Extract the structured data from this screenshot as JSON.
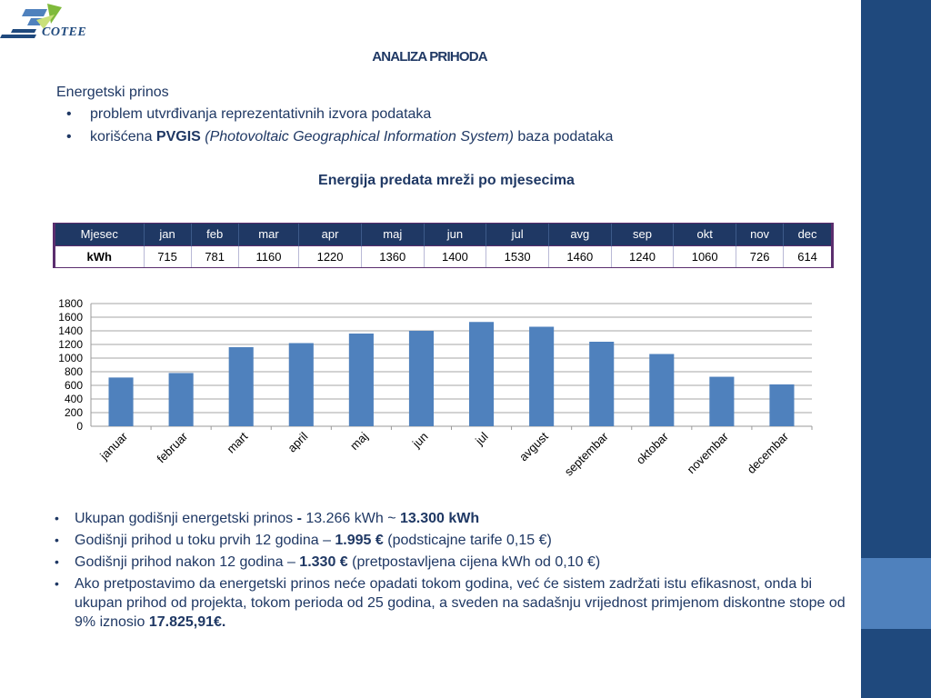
{
  "brand": {
    "name": "COTEE"
  },
  "slide": {
    "title": "ANALIZA PRIHODA",
    "intro": "Energetski prinos",
    "bullets": [
      {
        "text": "problem utvrđivanja reprezentativnih izvora podataka"
      },
      {
        "prefix": "korišćena ",
        "bold": "PVGIS",
        "italic": " (Photovoltaic Geographical Information System)",
        "suffix": " baza podataka"
      }
    ],
    "chart_title": "Energija predata mreži po mjesecima"
  },
  "table": {
    "header": [
      "Mjesec",
      "jan",
      "feb",
      "mar",
      "apr",
      "maj",
      "jun",
      "jul",
      "avg",
      "sep",
      "okt",
      "nov",
      "dec"
    ],
    "row": [
      "kWh",
      "715",
      "781",
      "1160",
      "1220",
      "1360",
      "1400",
      "1530",
      "1460",
      "1240",
      "1060",
      "726",
      "614"
    ]
  },
  "chart_data": {
    "type": "bar",
    "categories": [
      "januar",
      "februar",
      "mart",
      "april",
      "maj",
      "jun",
      "jul",
      "avgust",
      "septembar",
      "oktobar",
      "novembar",
      "decembar"
    ],
    "values": [
      715,
      781,
      1160,
      1220,
      1360,
      1400,
      1530,
      1460,
      1240,
      1060,
      726,
      614
    ],
    "title": "",
    "xlabel": "",
    "ylabel": "",
    "ylim": [
      0,
      1800
    ],
    "yticks": [
      0,
      200,
      400,
      600,
      800,
      1000,
      1200,
      1400,
      1600,
      1800
    ],
    "grid": true,
    "legend": "none",
    "bar_color": "#4f81bd"
  },
  "summary": [
    {
      "pre": "Ukupan godišnji energetski prinos ",
      "b1": "-",
      "mid": " 13.266 kWh ~ ",
      "b2": "13.300 kWh",
      "post": ""
    },
    {
      "pre": "Godišnji prihod u toku prvih 12 godina – ",
      "b1": "1.995 €",
      "mid": " (podsticajne tarife 0,15 €)",
      "b2": "",
      "post": ""
    },
    {
      "pre": "Godišnji prihod nakon 12 godina – ",
      "b1": "1.330 €",
      "mid": " (pretpostavljena cijena kWh od 0,10 €)",
      "b2": "",
      "post": ""
    },
    {
      "pre": "Ako pretpostavimo da energetski prinos neće opadati tokom godina, već će sistem zadržati istu efikasnost, onda bi ukupan prihod od projekta, tokom perioda od 25 godina, a sveden na sadašnju vrijednost primjenom diskontne stope od 9% iznosio ",
      "b1": "17.825,91€.",
      "mid": "",
      "b2": "",
      "post": ""
    }
  ],
  "colors": {
    "navy": "#1f3864",
    "band": "#1f497d",
    "band_light": "#4f81bd"
  }
}
